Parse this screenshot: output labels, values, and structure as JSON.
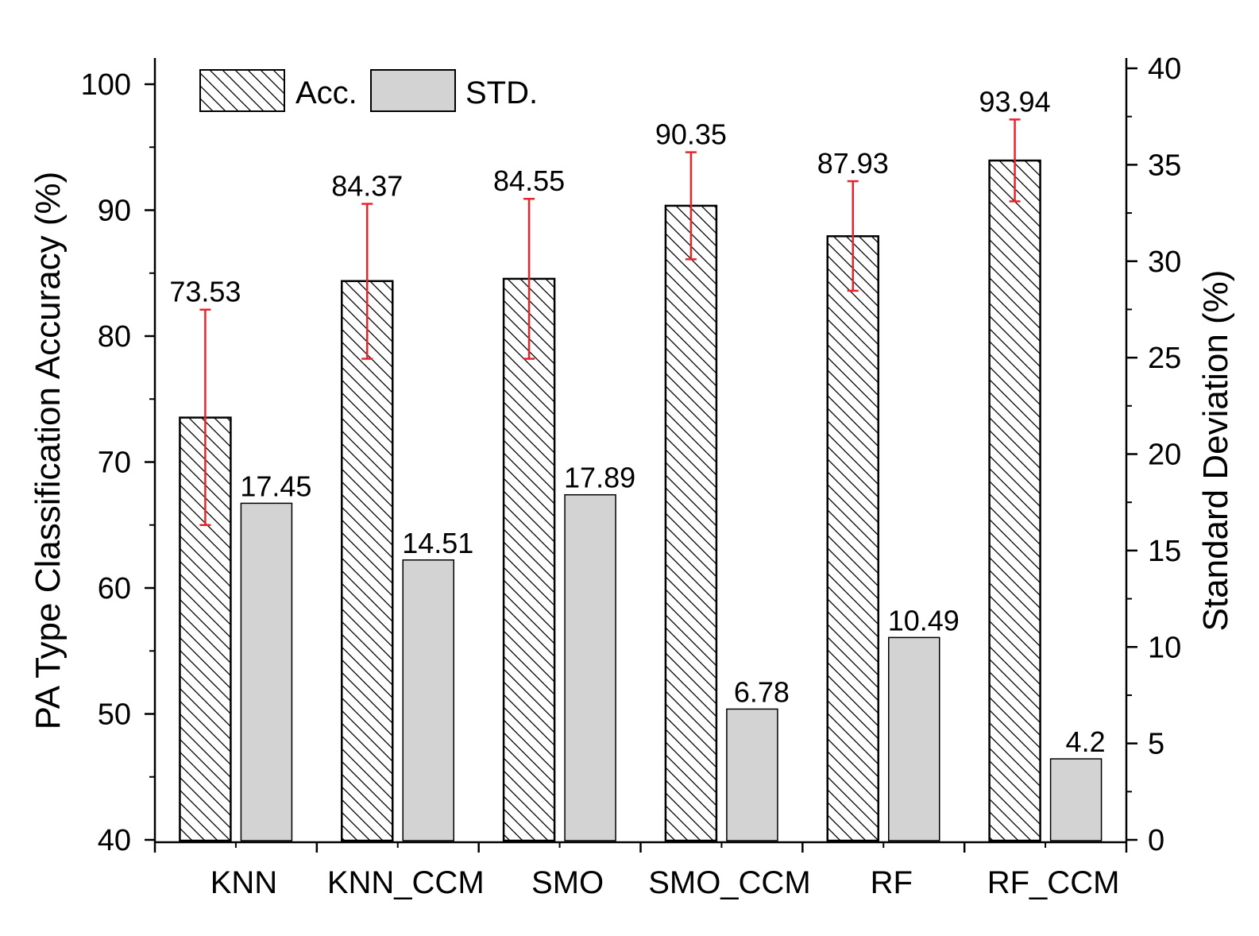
{
  "chart_data": {
    "type": "bar",
    "categories": [
      "KNN",
      "KNN_CCM",
      "SMO",
      "SMO_CCM",
      "RF",
      "RF_CCM"
    ],
    "series": [
      {
        "name": "Acc.",
        "axis": "left",
        "pattern": "hatch",
        "values": [
          73.53,
          84.37,
          84.55,
          90.35,
          87.93,
          93.94
        ],
        "error_low": [
          65.0,
          78.2,
          78.2,
          86.1,
          83.6,
          90.7
        ],
        "error_high": [
          82.1,
          90.5,
          90.9,
          94.6,
          92.3,
          97.2
        ],
        "labels": [
          "73.53",
          "84.37",
          "84.55",
          "90.35",
          "87.93",
          "93.94"
        ]
      },
      {
        "name": "STD.",
        "axis": "right",
        "color": "#d3d3d3",
        "values": [
          17.45,
          14.51,
          17.89,
          6.78,
          10.49,
          4.2
        ],
        "labels": [
          "17.45",
          "14.51",
          "17.89",
          "6.78",
          "10.49",
          "4.2"
        ]
      }
    ],
    "ylabel": "PA Type Classification Accuracy (%)",
    "ylabel_right": "Standard Deviation (%)",
    "ylim": [
      40,
      100
    ],
    "ylim_right": [
      0,
      40
    ],
    "yticks": [
      "40",
      "50",
      "60",
      "70",
      "80",
      "90",
      "100"
    ],
    "yticks_right": [
      "0",
      "5",
      "10",
      "15",
      "20",
      "25",
      "30",
      "35",
      "40"
    ],
    "legend": [
      {
        "label": "Acc.",
        "style": "hatch"
      },
      {
        "label": "STD.",
        "style": "solid"
      }
    ],
    "legend_position": "top-left",
    "error_bar_color": "#e8242a"
  }
}
